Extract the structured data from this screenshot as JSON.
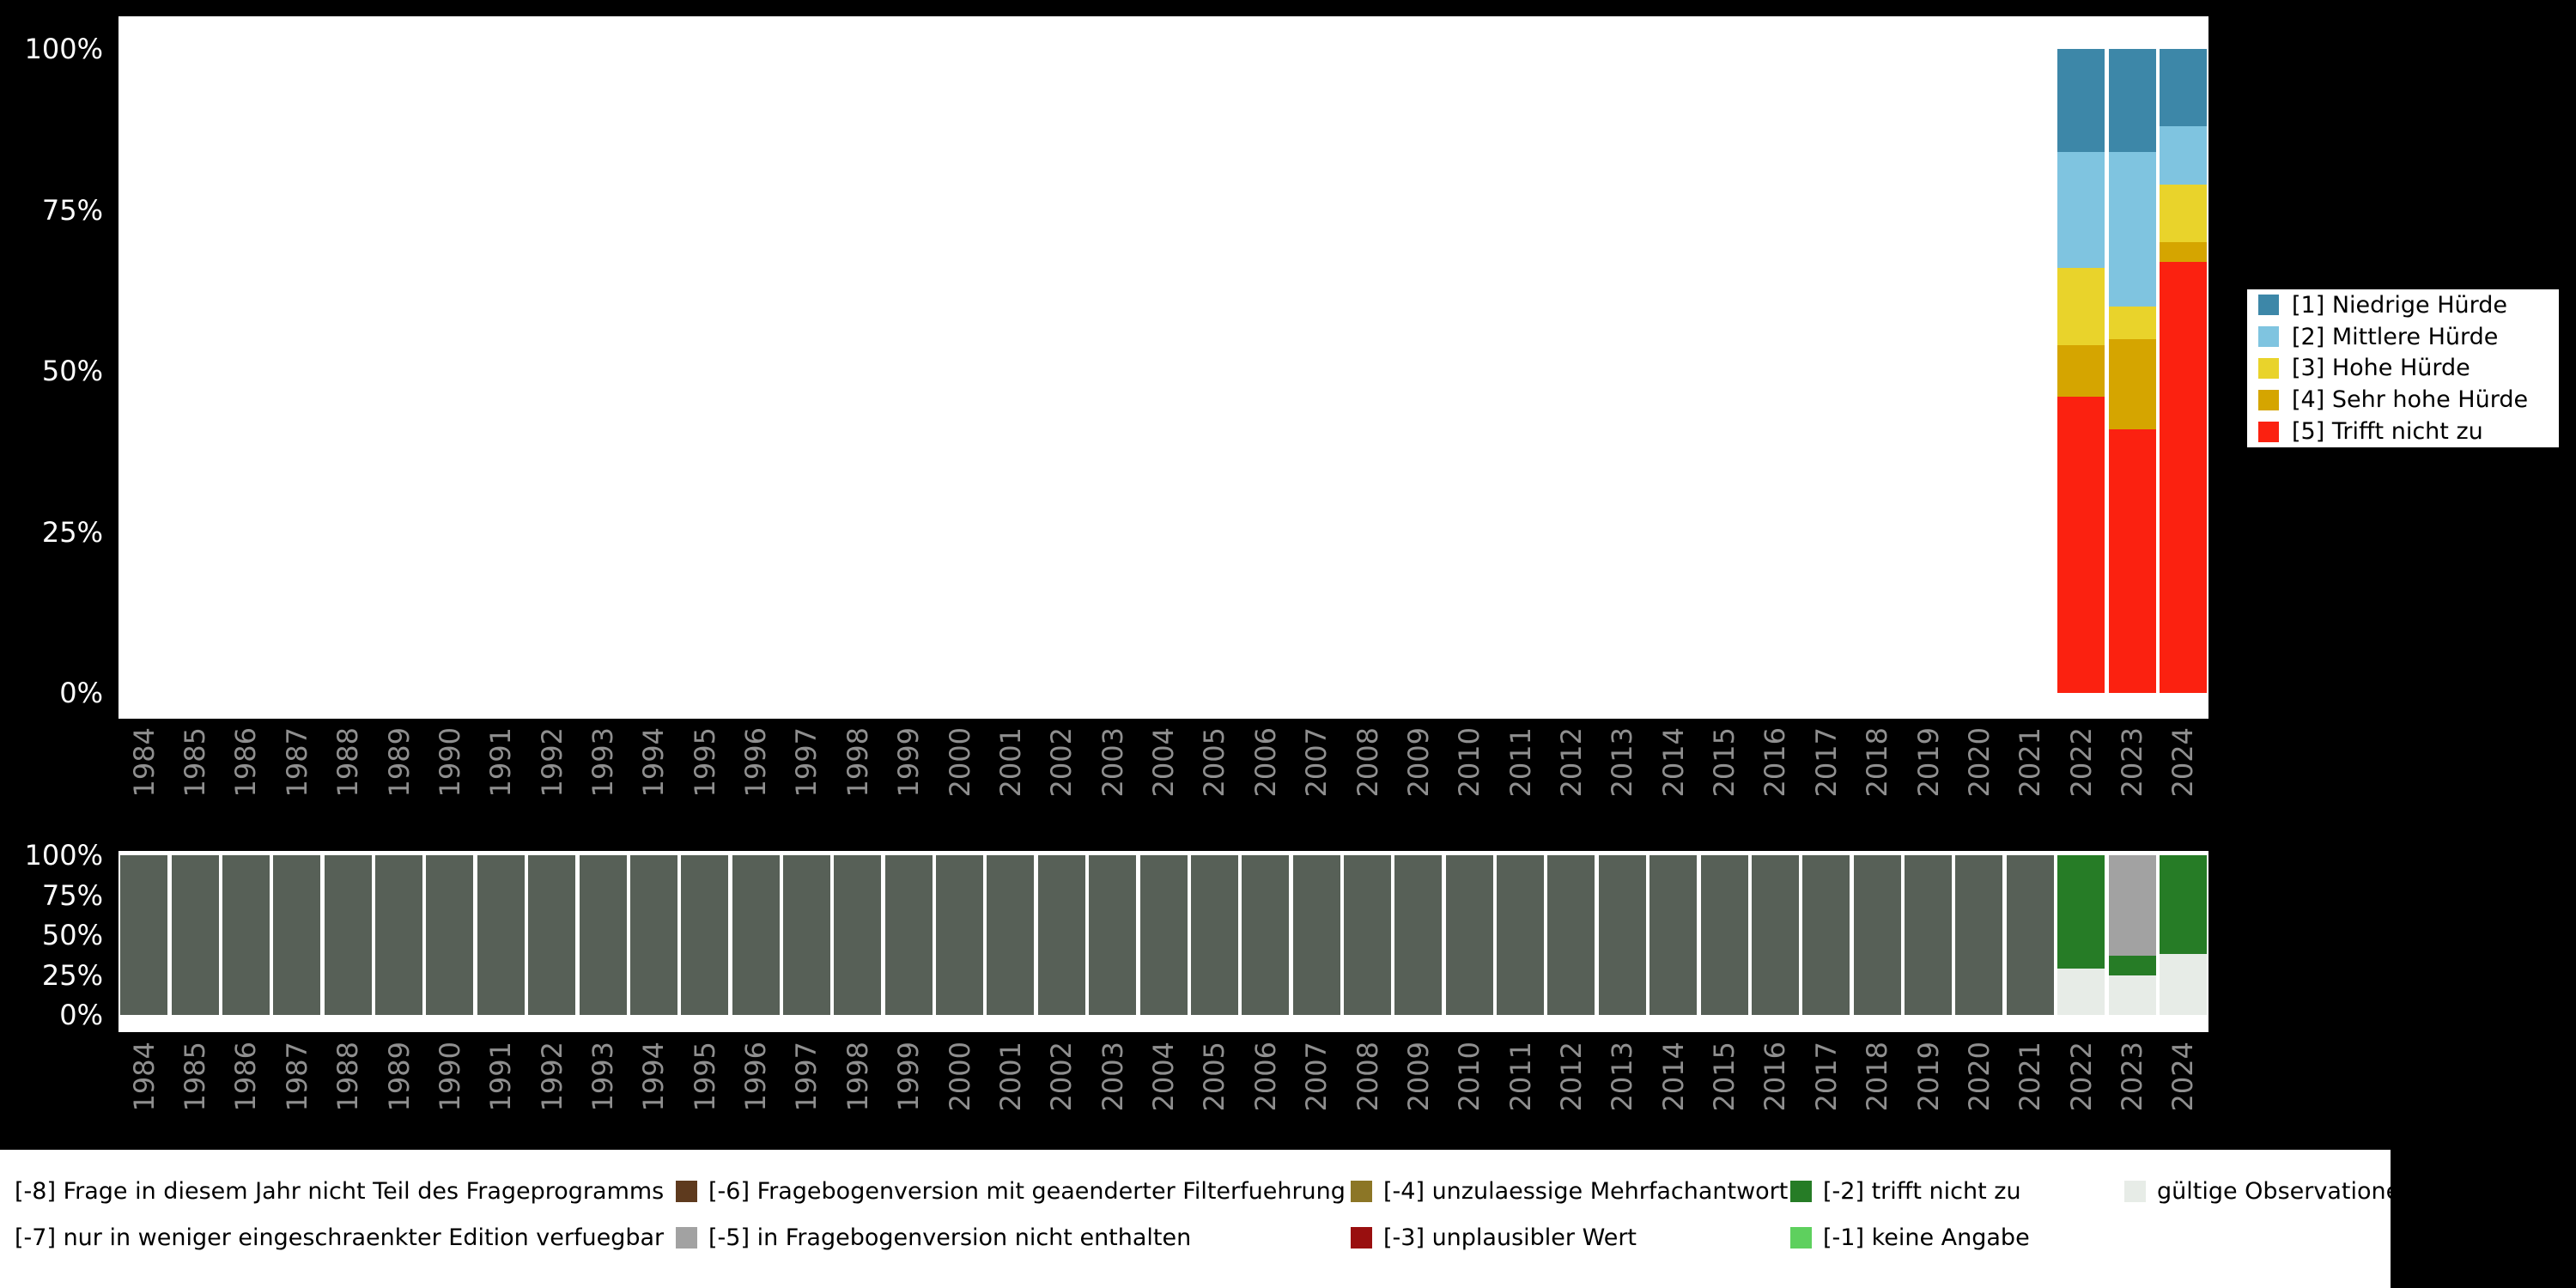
{
  "colors": {
    "page_bg": "#000000",
    "plot_bg": "#ffffff",
    "axis_tick_text": "#ffffff",
    "year_tick_text": "#8f8f8f",
    "legend_bg": "#ffffff",
    "legend_text": "#000000"
  },
  "palette": {
    "s1": "#3d87a8",
    "s2": "#7fc4e0",
    "s3": "#e9d32b",
    "s4": "#d5a500",
    "s5": "#fb2110",
    "m8": "#576057",
    "m6": "#5e3a1e",
    "m5": "#a2a2a2",
    "m4": "#8c7626",
    "m3": "#990f0f",
    "m2": "#267c26",
    "m1": "#5ed05e",
    "valid": "#e7ece7"
  },
  "chart_data": [
    {
      "id": "answers",
      "type": "bar",
      "variant": "stacked_percent",
      "title": "",
      "xlabel": "",
      "ylabel": "",
      "ylim": [
        0,
        100
      ],
      "yticks": [
        "0%",
        "25%",
        "50%",
        "75%",
        "100%"
      ],
      "grid": false,
      "legend_position": "right",
      "stack_order": "reverse",
      "categories": [
        "1984",
        "1985",
        "1986",
        "1987",
        "1988",
        "1989",
        "1990",
        "1991",
        "1992",
        "1993",
        "1994",
        "1995",
        "1996",
        "1997",
        "1998",
        "1999",
        "2000",
        "2001",
        "2002",
        "2003",
        "2004",
        "2005",
        "2006",
        "2007",
        "2008",
        "2009",
        "2010",
        "2011",
        "2012",
        "2013",
        "2014",
        "2015",
        "2016",
        "2017",
        "2018",
        "2019",
        "2020",
        "2021",
        "2022",
        "2023",
        "2024"
      ],
      "series": [
        {
          "name": "[1] Niedrige Hürde",
          "key": "s1",
          "values_by_year": {
            "2022": 16,
            "2023": 16,
            "2024": 12
          }
        },
        {
          "name": "[2] Mittlere Hürde",
          "key": "s2",
          "values_by_year": {
            "2022": 18,
            "2023": 24,
            "2024": 9
          }
        },
        {
          "name": "[3] Hohe Hürde",
          "key": "s3",
          "values_by_year": {
            "2022": 12,
            "2023": 5,
            "2024": 9
          }
        },
        {
          "name": "[4] Sehr hohe Hürde",
          "key": "s4",
          "values_by_year": {
            "2022": 8,
            "2023": 14,
            "2024": 3
          }
        },
        {
          "name": "[5] Trifft nicht zu",
          "key": "s5",
          "values_by_year": {
            "2022": 46,
            "2023": 41,
            "2024": 67
          }
        }
      ]
    },
    {
      "id": "missings",
      "type": "bar",
      "variant": "stacked_percent",
      "title": "",
      "xlabel": "",
      "ylabel": "",
      "ylim": [
        0,
        100
      ],
      "yticks": [
        "0%",
        "25%",
        "50%",
        "75%",
        "100%"
      ],
      "grid": false,
      "legend_position": "bottom",
      "stack_order": "as_listed",
      "categories": [
        "1984",
        "1985",
        "1986",
        "1987",
        "1988",
        "1989",
        "1990",
        "1991",
        "1992",
        "1993",
        "1994",
        "1995",
        "1996",
        "1997",
        "1998",
        "1999",
        "2000",
        "2001",
        "2002",
        "2003",
        "2004",
        "2005",
        "2006",
        "2007",
        "2008",
        "2009",
        "2010",
        "2011",
        "2012",
        "2013",
        "2014",
        "2015",
        "2016",
        "2017",
        "2018",
        "2019",
        "2020",
        "2021",
        "2022",
        "2023",
        "2024"
      ],
      "series": [
        {
          "name": "gültige Observationen",
          "key": "valid",
          "values_by_year": {
            "2022": 29,
            "2023": 25,
            "2024": 38
          }
        },
        {
          "name": "[-2] trifft nicht zu",
          "key": "m2",
          "values_by_year": {
            "2022": 71,
            "2023": 12,
            "2024": 62
          }
        },
        {
          "name": "[-5] in Fragebogenversion nicht enthalten",
          "key": "m5",
          "values_by_year": {
            "2023": 63
          }
        },
        {
          "name": "[-8] Frage in diesem Jahr nicht Teil des Frageprogramms",
          "key": "m8",
          "range": [
            "1984",
            "2021"
          ],
          "range_value": 100
        }
      ]
    }
  ],
  "missing_legend": {
    "rows": [
      [
        {
          "label": "[-8] Frage in diesem Jahr nicht Teil des Frageprogramms",
          "key": null
        },
        {
          "label": "[-6] Fragebogenversion mit geaenderter Filterfuehrung",
          "key": "m6"
        },
        {
          "label": "[-4] unzulaessige Mehrfachantwort",
          "key": "m4"
        },
        {
          "label": "[-2] trifft nicht zu",
          "key": "m2"
        },
        {
          "label": "gültige Observationen",
          "key": "valid"
        }
      ],
      [
        {
          "label": "[-7] nur in weniger eingeschraenkter Edition verfuegbar",
          "key": null
        },
        {
          "label": "[-5] in Fragebogenversion nicht enthalten",
          "key": "m5"
        },
        {
          "label": "[-3] unplausibler Wert",
          "key": "m3"
        },
        {
          "label": "[-1] keine Angabe",
          "key": "m1"
        }
      ]
    ]
  }
}
